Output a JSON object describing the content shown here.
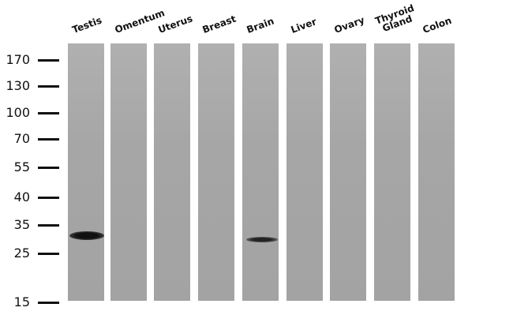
{
  "lanes": [
    "Testis",
    "Omentum",
    "Uterus",
    "Breast",
    "Brain",
    "Liver",
    "Ovary",
    "Thyroid Gland",
    "Colon"
  ],
  "markers": [
    "170",
    "130",
    "100",
    "70",
    "55",
    "40",
    "35",
    "25",
    "15"
  ]
}
